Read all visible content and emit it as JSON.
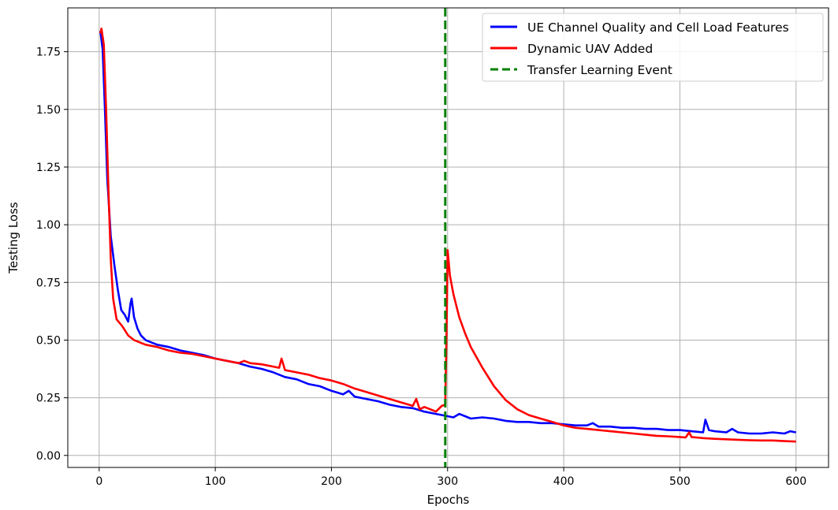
{
  "chart_data": {
    "type": "line",
    "title": "",
    "xlabel": "Epochs",
    "ylabel": "Testing Loss",
    "xlim": [
      -27,
      628
    ],
    "ylim": [
      -0.052,
      1.94
    ],
    "grid": true,
    "legend_position": "top-right",
    "x_ticks": [
      0,
      100,
      200,
      300,
      400,
      500,
      600
    ],
    "x_tick_labels": [
      "0",
      "100",
      "200",
      "300",
      "400",
      "500",
      "600"
    ],
    "y_ticks": [
      0.0,
      0.25,
      0.5,
      0.75,
      1.0,
      1.25,
      1.5,
      1.75
    ],
    "y_tick_labels": [
      "0.00",
      "0.25",
      "0.50",
      "0.75",
      "1.00",
      "1.25",
      "1.50",
      "1.75"
    ],
    "series": [
      {
        "name": "UE Channel Quality and Cell Load Features",
        "color": "#0000ff",
        "style": "solid",
        "points": [
          [
            1,
            1.84
          ],
          [
            3,
            1.76
          ],
          [
            5,
            1.5
          ],
          [
            7,
            1.2
          ],
          [
            10,
            0.95
          ],
          [
            13,
            0.83
          ],
          [
            16,
            0.72
          ],
          [
            19,
            0.63
          ],
          [
            22,
            0.61
          ],
          [
            25,
            0.58
          ],
          [
            27,
            0.66
          ],
          [
            28,
            0.68
          ],
          [
            30,
            0.6
          ],
          [
            33,
            0.55
          ],
          [
            36,
            0.52
          ],
          [
            40,
            0.5
          ],
          [
            45,
            0.49
          ],
          [
            50,
            0.48
          ],
          [
            60,
            0.47
          ],
          [
            70,
            0.455
          ],
          [
            80,
            0.445
          ],
          [
            90,
            0.435
          ],
          [
            100,
            0.42
          ],
          [
            110,
            0.41
          ],
          [
            120,
            0.4
          ],
          [
            130,
            0.385
          ],
          [
            140,
            0.375
          ],
          [
            150,
            0.36
          ],
          [
            160,
            0.34
          ],
          [
            170,
            0.33
          ],
          [
            180,
            0.31
          ],
          [
            190,
            0.3
          ],
          [
            200,
            0.28
          ],
          [
            210,
            0.265
          ],
          [
            215,
            0.28
          ],
          [
            220,
            0.255
          ],
          [
            230,
            0.245
          ],
          [
            240,
            0.235
          ],
          [
            250,
            0.22
          ],
          [
            260,
            0.21
          ],
          [
            270,
            0.205
          ],
          [
            280,
            0.19
          ],
          [
            290,
            0.18
          ],
          [
            300,
            0.17
          ],
          [
            305,
            0.165
          ],
          [
            310,
            0.18
          ],
          [
            315,
            0.17
          ],
          [
            320,
            0.16
          ],
          [
            330,
            0.165
          ],
          [
            340,
            0.16
          ],
          [
            350,
            0.15
          ],
          [
            360,
            0.145
          ],
          [
            370,
            0.145
          ],
          [
            380,
            0.14
          ],
          [
            390,
            0.14
          ],
          [
            400,
            0.135
          ],
          [
            410,
            0.13
          ],
          [
            420,
            0.13
          ],
          [
            425,
            0.14
          ],
          [
            430,
            0.125
          ],
          [
            440,
            0.125
          ],
          [
            450,
            0.12
          ],
          [
            460,
            0.12
          ],
          [
            470,
            0.115
          ],
          [
            480,
            0.115
          ],
          [
            490,
            0.11
          ],
          [
            500,
            0.11
          ],
          [
            510,
            0.105
          ],
          [
            520,
            0.1
          ],
          [
            522,
            0.155
          ],
          [
            525,
            0.11
          ],
          [
            530,
            0.105
          ],
          [
            540,
            0.1
          ],
          [
            545,
            0.115
          ],
          [
            550,
            0.1
          ],
          [
            560,
            0.095
          ],
          [
            570,
            0.095
          ],
          [
            580,
            0.1
          ],
          [
            590,
            0.095
          ],
          [
            595,
            0.105
          ],
          [
            600,
            0.1
          ]
        ]
      },
      {
        "name": "Dynamic UAV Added",
        "color": "#ff0000",
        "style": "solid",
        "points": [
          [
            1,
            1.83
          ],
          [
            2,
            1.85
          ],
          [
            4,
            1.78
          ],
          [
            6,
            1.5
          ],
          [
            8,
            1.15
          ],
          [
            10,
            0.85
          ],
          [
            12,
            0.68
          ],
          [
            15,
            0.59
          ],
          [
            20,
            0.56
          ],
          [
            25,
            0.52
          ],
          [
            30,
            0.5
          ],
          [
            40,
            0.48
          ],
          [
            50,
            0.47
          ],
          [
            60,
            0.455
          ],
          [
            70,
            0.445
          ],
          [
            80,
            0.44
          ],
          [
            90,
            0.43
          ],
          [
            100,
            0.42
          ],
          [
            110,
            0.41
          ],
          [
            120,
            0.4
          ],
          [
            125,
            0.41
          ],
          [
            130,
            0.4
          ],
          [
            140,
            0.395
          ],
          [
            150,
            0.385
          ],
          [
            155,
            0.38
          ],
          [
            157,
            0.42
          ],
          [
            160,
            0.37
          ],
          [
            170,
            0.36
          ],
          [
            180,
            0.35
          ],
          [
            190,
            0.335
          ],
          [
            200,
            0.325
          ],
          [
            210,
            0.31
          ],
          [
            220,
            0.29
          ],
          [
            230,
            0.275
          ],
          [
            240,
            0.26
          ],
          [
            250,
            0.245
          ],
          [
            260,
            0.23
          ],
          [
            270,
            0.215
          ],
          [
            273,
            0.245
          ],
          [
            276,
            0.2
          ],
          [
            280,
            0.21
          ],
          [
            285,
            0.2
          ],
          [
            290,
            0.19
          ],
          [
            295,
            0.215
          ],
          [
            298,
            0.22
          ],
          [
            299,
            0.5
          ],
          [
            300,
            0.89
          ],
          [
            302,
            0.78
          ],
          [
            305,
            0.7
          ],
          [
            310,
            0.6
          ],
          [
            315,
            0.53
          ],
          [
            320,
            0.47
          ],
          [
            330,
            0.38
          ],
          [
            340,
            0.3
          ],
          [
            350,
            0.24
          ],
          [
            360,
            0.2
          ],
          [
            370,
            0.175
          ],
          [
            380,
            0.16
          ],
          [
            390,
            0.145
          ],
          [
            400,
            0.13
          ],
          [
            410,
            0.12
          ],
          [
            420,
            0.115
          ],
          [
            430,
            0.11
          ],
          [
            440,
            0.105
          ],
          [
            450,
            0.1
          ],
          [
            460,
            0.095
          ],
          [
            470,
            0.09
          ],
          [
            480,
            0.085
          ],
          [
            490,
            0.083
          ],
          [
            500,
            0.08
          ],
          [
            505,
            0.078
          ],
          [
            508,
            0.1
          ],
          [
            510,
            0.08
          ],
          [
            520,
            0.075
          ],
          [
            530,
            0.072
          ],
          [
            540,
            0.07
          ],
          [
            550,
            0.068
          ],
          [
            560,
            0.066
          ],
          [
            570,
            0.065
          ],
          [
            580,
            0.065
          ],
          [
            590,
            0.062
          ],
          [
            600,
            0.06
          ]
        ]
      },
      {
        "name": "Transfer Learning Event",
        "color": "#008000",
        "style": "dashed",
        "vertical_x": 298
      }
    ]
  }
}
